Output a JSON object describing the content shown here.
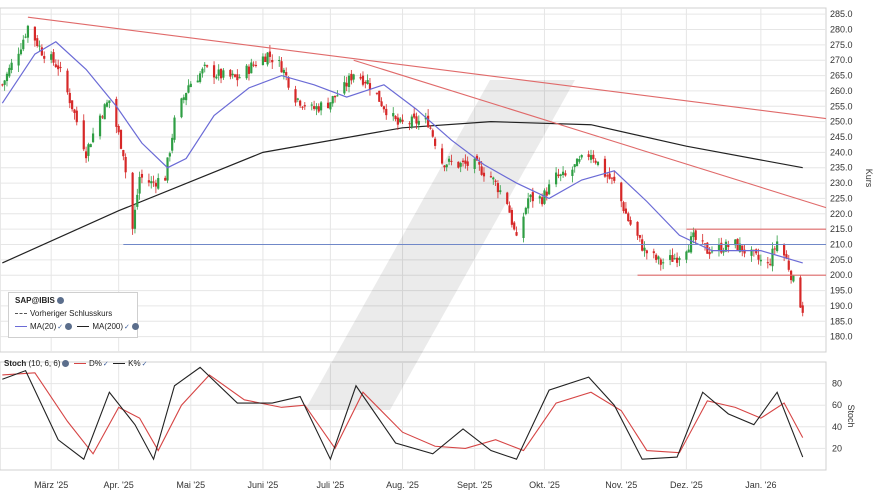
{
  "chart_data": [
    {
      "type": "candlestick",
      "title": "SAP@IBIS",
      "ylabel": "Kurs",
      "ylim": [
        175,
        287
      ],
      "yticks": [
        180,
        185,
        190,
        195,
        200,
        205,
        210,
        215,
        220,
        225,
        230,
        235,
        240,
        245,
        250,
        255,
        260,
        265,
        270,
        275,
        280,
        285
      ],
      "xticks": [
        {
          "label": "März '25",
          "date": "2025-03-03"
        },
        {
          "label": "Apr. '25",
          "date": "2025-04-01"
        },
        {
          "label": "Mai '25",
          "date": "2025-05-02"
        },
        {
          "label": "Juni '25",
          "date": "2025-06-02"
        },
        {
          "label": "Juli '25",
          "date": "2025-07-01"
        },
        {
          "label": "Aug. '25",
          "date": "2025-08-01"
        },
        {
          "label": "Sept. '25",
          "date": "2025-09-01"
        },
        {
          "label": "Okt. '25",
          "date": "2025-10-01"
        },
        {
          "label": "Nov. '25",
          "date": "2025-11-03"
        },
        {
          "label": "Dez. '25",
          "date": "2025-12-01"
        },
        {
          "label": "Jan. '26",
          "date": "2026-01-02"
        }
      ],
      "legend": [
        {
          "label": "SAP@IBIS",
          "style": "title"
        },
        {
          "label": "Vorheriger Schlusskurs",
          "style": "dashed"
        },
        {
          "label": "MA(20)",
          "color": "#6b6bd6"
        },
        {
          "label": "MA(200)",
          "color": "#222222"
        }
      ],
      "price_path": [
        {
          "date": "2025-02-10",
          "close": 262
        },
        {
          "date": "2025-02-18",
          "close": 275
        },
        {
          "date": "2025-02-21",
          "close": 281
        },
        {
          "date": "2025-02-27",
          "close": 273
        },
        {
          "date": "2025-03-06",
          "close": 268
        },
        {
          "date": "2025-03-12",
          "close": 255
        },
        {
          "date": "2025-03-18",
          "close": 240
        },
        {
          "date": "2025-03-24",
          "close": 252
        },
        {
          "date": "2025-03-28",
          "close": 257
        },
        {
          "date": "2025-04-03",
          "close": 240
        },
        {
          "date": "2025-04-07",
          "close": 215
        },
        {
          "date": "2025-04-10",
          "close": 232
        },
        {
          "date": "2025-04-15",
          "close": 230
        },
        {
          "date": "2025-04-21",
          "close": 232
        },
        {
          "date": "2025-04-25",
          "close": 250
        },
        {
          "date": "2025-05-01",
          "close": 262
        },
        {
          "date": "2025-05-08",
          "close": 267
        },
        {
          "date": "2025-05-15",
          "close": 265
        },
        {
          "date": "2025-05-22",
          "close": 264
        },
        {
          "date": "2025-05-28",
          "close": 268
        },
        {
          "date": "2025-06-04",
          "close": 272
        },
        {
          "date": "2025-06-10",
          "close": 268
        },
        {
          "date": "2025-06-16",
          "close": 258
        },
        {
          "date": "2025-06-23",
          "close": 254
        },
        {
          "date": "2025-06-30",
          "close": 256
        },
        {
          "date": "2025-07-07",
          "close": 261
        },
        {
          "date": "2025-07-11",
          "close": 266
        },
        {
          "date": "2025-07-17",
          "close": 263
        },
        {
          "date": "2025-07-24",
          "close": 255
        },
        {
          "date": "2025-07-30",
          "close": 249
        },
        {
          "date": "2025-08-06",
          "close": 250
        },
        {
          "date": "2025-08-12",
          "close": 250
        },
        {
          "date": "2025-08-18",
          "close": 237
        },
        {
          "date": "2025-08-25",
          "close": 236
        },
        {
          "date": "2025-09-01",
          "close": 236
        },
        {
          "date": "2025-09-08",
          "close": 232
        },
        {
          "date": "2025-09-15",
          "close": 224
        },
        {
          "date": "2025-09-19",
          "close": 211
        },
        {
          "date": "2025-09-24",
          "close": 225
        },
        {
          "date": "2025-09-30",
          "close": 225
        },
        {
          "date": "2025-10-06",
          "close": 232
        },
        {
          "date": "2025-10-10",
          "close": 232
        },
        {
          "date": "2025-10-15",
          "close": 236
        },
        {
          "date": "2025-10-21",
          "close": 240
        },
        {
          "date": "2025-10-27",
          "close": 233
        },
        {
          "date": "2025-10-31",
          "close": 230
        },
        {
          "date": "2025-11-06",
          "close": 218
        },
        {
          "date": "2025-11-13",
          "close": 208
        },
        {
          "date": "2025-11-20",
          "close": 204
        },
        {
          "date": "2025-11-27",
          "close": 206
        },
        {
          "date": "2025-12-04",
          "close": 212
        },
        {
          "date": "2025-12-10",
          "close": 208
        },
        {
          "date": "2025-12-16",
          "close": 209
        },
        {
          "date": "2025-12-22",
          "close": 210
        },
        {
          "date": "2025-12-30",
          "close": 206
        },
        {
          "date": "2026-01-05",
          "close": 203
        },
        {
          "date": "2026-01-09",
          "close": 211
        },
        {
          "date": "2026-01-13",
          "close": 205
        },
        {
          "date": "2026-01-16",
          "close": 198
        },
        {
          "date": "2026-01-19",
          "close": 191
        },
        {
          "date": "2026-01-20",
          "close": 189
        }
      ],
      "ma20": [
        {
          "date": "2025-02-10",
          "value": 256
        },
        {
          "date": "2025-02-24",
          "value": 272
        },
        {
          "date": "2025-03-05",
          "value": 276
        },
        {
          "date": "2025-03-18",
          "value": 267
        },
        {
          "date": "2025-03-31",
          "value": 255
        },
        {
          "date": "2025-04-11",
          "value": 243
        },
        {
          "date": "2025-04-22",
          "value": 235
        },
        {
          "date": "2025-04-30",
          "value": 238
        },
        {
          "date": "2025-05-12",
          "value": 252
        },
        {
          "date": "2025-05-27",
          "value": 261
        },
        {
          "date": "2025-06-10",
          "value": 265
        },
        {
          "date": "2025-06-24",
          "value": 262
        },
        {
          "date": "2025-07-08",
          "value": 258
        },
        {
          "date": "2025-07-24",
          "value": 262
        },
        {
          "date": "2025-08-07",
          "value": 254
        },
        {
          "date": "2025-08-22",
          "value": 244
        },
        {
          "date": "2025-09-05",
          "value": 236
        },
        {
          "date": "2025-09-19",
          "value": 230
        },
        {
          "date": "2025-10-03",
          "value": 225
        },
        {
          "date": "2025-10-17",
          "value": 231
        },
        {
          "date": "2025-10-31",
          "value": 234
        },
        {
          "date": "2025-11-14",
          "value": 224
        },
        {
          "date": "2025-11-28",
          "value": 213
        },
        {
          "date": "2025-12-12",
          "value": 208
        },
        {
          "date": "2026-01-02",
          "value": 208
        },
        {
          "date": "2026-01-20",
          "value": 204
        }
      ],
      "ma200": [
        {
          "date": "2025-02-10",
          "value": 204
        },
        {
          "date": "2025-04-01",
          "value": 221
        },
        {
          "date": "2025-06-02",
          "value": 240
        },
        {
          "date": "2025-08-01",
          "value": 248
        },
        {
          "date": "2025-09-08",
          "value": 250
        },
        {
          "date": "2025-10-21",
          "value": 249
        },
        {
          "date": "2025-12-01",
          "value": 242
        },
        {
          "date": "2026-01-20",
          "value": 235
        }
      ],
      "trendlines": [
        {
          "from": {
            "date": "2025-02-21",
            "value": 284
          },
          "to": {
            "date": "2026-01-30",
            "value": 251
          },
          "color": "#e06a6a"
        },
        {
          "from": {
            "date": "2025-07-11",
            "value": 270
          },
          "to": {
            "date": "2026-01-30",
            "value": 222
          },
          "color": "#e06a6a"
        },
        {
          "from": {
            "date": "2025-04-03",
            "value": 210
          },
          "to": {
            "date": "2026-01-30",
            "value": 210
          },
          "color": "#7088c8"
        },
        {
          "from": {
            "date": "2025-12-01",
            "value": 215
          },
          "to": {
            "date": "2026-01-30",
            "value": 215
          },
          "color": "#e06a6a"
        },
        {
          "from": {
            "date": "2025-11-10",
            "value": 200
          },
          "to": {
            "date": "2026-01-30",
            "value": 200
          },
          "color": "#e06a6a"
        }
      ]
    },
    {
      "type": "line",
      "title": "Stoch",
      "params": "(10, 6, 6)",
      "ylabel": "Stoch",
      "ylim": [
        0,
        100
      ],
      "yticks": [
        20,
        40,
        60,
        80
      ],
      "series": [
        {
          "name": "D%",
          "color": "#d64545",
          "points": [
            {
              "date": "2025-02-10",
              "value": 88
            },
            {
              "date": "2025-02-24",
              "value": 90
            },
            {
              "date": "2025-03-10",
              "value": 45
            },
            {
              "date": "2025-03-21",
              "value": 15
            },
            {
              "date": "2025-04-01",
              "value": 58
            },
            {
              "date": "2025-04-10",
              "value": 48
            },
            {
              "date": "2025-04-18",
              "value": 18
            },
            {
              "date": "2025-04-28",
              "value": 60
            },
            {
              "date": "2025-05-10",
              "value": 88
            },
            {
              "date": "2025-05-25",
              "value": 65
            },
            {
              "date": "2025-06-10",
              "value": 58
            },
            {
              "date": "2025-06-20",
              "value": 60
            },
            {
              "date": "2025-07-03",
              "value": 20
            },
            {
              "date": "2025-07-15",
              "value": 72
            },
            {
              "date": "2025-08-01",
              "value": 35
            },
            {
              "date": "2025-08-15",
              "value": 22
            },
            {
              "date": "2025-08-28",
              "value": 20
            },
            {
              "date": "2025-09-10",
              "value": 28
            },
            {
              "date": "2025-09-22",
              "value": 18
            },
            {
              "date": "2025-10-06",
              "value": 62
            },
            {
              "date": "2025-10-21",
              "value": 72
            },
            {
              "date": "2025-11-03",
              "value": 55
            },
            {
              "date": "2025-11-14",
              "value": 18
            },
            {
              "date": "2025-11-28",
              "value": 16
            },
            {
              "date": "2025-12-10",
              "value": 64
            },
            {
              "date": "2025-12-22",
              "value": 58
            },
            {
              "date": "2026-01-02",
              "value": 48
            },
            {
              "date": "2026-01-12",
              "value": 62
            },
            {
              "date": "2026-01-20",
              "value": 30
            }
          ]
        },
        {
          "name": "K%",
          "color": "#222222",
          "points": [
            {
              "date": "2025-02-10",
              "value": 84
            },
            {
              "date": "2025-02-20",
              "value": 92
            },
            {
              "date": "2025-03-06",
              "value": 28
            },
            {
              "date": "2025-03-17",
              "value": 10
            },
            {
              "date": "2025-03-28",
              "value": 72
            },
            {
              "date": "2025-04-08",
              "value": 42
            },
            {
              "date": "2025-04-16",
              "value": 10
            },
            {
              "date": "2025-04-25",
              "value": 78
            },
            {
              "date": "2025-05-06",
              "value": 95
            },
            {
              "date": "2025-05-22",
              "value": 62
            },
            {
              "date": "2025-06-06",
              "value": 62
            },
            {
              "date": "2025-06-18",
              "value": 68
            },
            {
              "date": "2025-07-01",
              "value": 10
            },
            {
              "date": "2025-07-12",
              "value": 78
            },
            {
              "date": "2025-07-29",
              "value": 25
            },
            {
              "date": "2025-08-14",
              "value": 15
            },
            {
              "date": "2025-08-27",
              "value": 38
            },
            {
              "date": "2025-09-08",
              "value": 18
            },
            {
              "date": "2025-09-19",
              "value": 10
            },
            {
              "date": "2025-10-03",
              "value": 74
            },
            {
              "date": "2025-10-20",
              "value": 86
            },
            {
              "date": "2025-10-31",
              "value": 60
            },
            {
              "date": "2025-11-12",
              "value": 10
            },
            {
              "date": "2025-11-27",
              "value": 12
            },
            {
              "date": "2025-12-08",
              "value": 72
            },
            {
              "date": "2025-12-19",
              "value": 52
            },
            {
              "date": "2025-12-30",
              "value": 42
            },
            {
              "date": "2026-01-09",
              "value": 72
            },
            {
              "date": "2026-01-20",
              "value": 12
            }
          ]
        }
      ],
      "legend": [
        {
          "label": "Stoch",
          "style": "title"
        },
        {
          "label": "(10, 6, 6)"
        },
        {
          "label": "D%",
          "color": "#d64545"
        },
        {
          "label": "K%",
          "color": "#222222"
        }
      ]
    }
  ],
  "colors": {
    "up_candle": "#2f9e44",
    "down_candle": "#d62828",
    "ma20": "#6b6bd6",
    "ma200": "#222222",
    "grid": "#e6e6e6",
    "axis_text": "#333333"
  },
  "icons": [
    "gear-icon",
    "check-icon"
  ]
}
